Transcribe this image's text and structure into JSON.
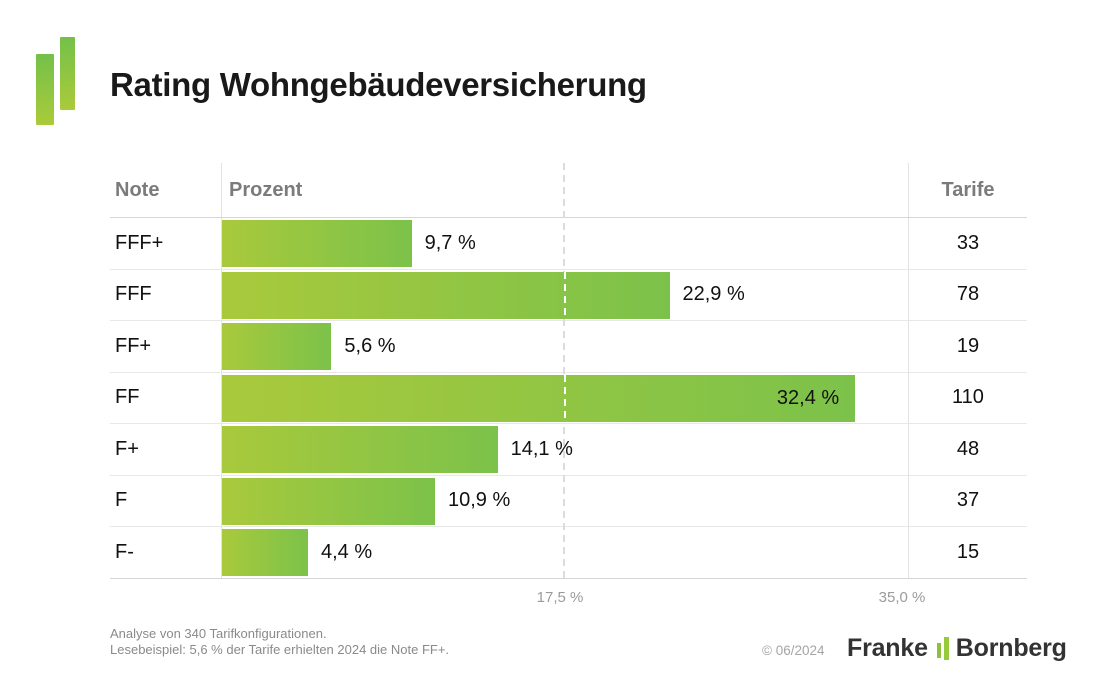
{
  "title": "Rating Wohngebäudeversicherung",
  "table": {
    "headers": {
      "note": "Note",
      "prozent": "Prozent",
      "tarife": "Tarife"
    }
  },
  "chart_data": {
    "type": "bar",
    "orientation": "horizontal",
    "title": "Rating Wohngebäudeversicherung",
    "categories": [
      "FFF+",
      "FFF",
      "FF+",
      "FF",
      "F+",
      "F",
      "F-"
    ],
    "values": [
      9.7,
      22.9,
      5.6,
      32.4,
      14.1,
      10.9,
      4.4
    ],
    "value_labels": [
      "9,7 %",
      "22,9 %",
      "5,6 %",
      "32,4 %",
      "14,1 %",
      "10,9 %",
      "4,4 %"
    ],
    "label_inside": [
      false,
      false,
      false,
      true,
      false,
      false,
      false
    ],
    "tarife_counts": [
      33,
      78,
      19,
      110,
      48,
      37,
      15
    ],
    "xlim": [
      0,
      35
    ],
    "x_ticks": [
      {
        "value": 17.5,
        "label": "17,5 %"
      },
      {
        "value": 35.0,
        "label": "35,0 %"
      }
    ],
    "gridline_at": 17.5,
    "grid_style": "dashed",
    "legend": "none",
    "bar_color_start": "#a9c93c",
    "bar_color_end": "#7cc24a"
  },
  "footer": {
    "line1": "Analyse von 340 Tarifkonfigurationen.",
    "line2": "Lesebeispiel: 5,6 % der Tarife erhielten 2024 die Note FF+.",
    "copyright": "© 06/2024",
    "brand_word1": "Franke",
    "brand_word2": "Bornberg"
  },
  "colors": {
    "brand_green": "#8fc03c",
    "title_text": "#191919",
    "header_text": "#7b7b7b",
    "muted_text": "#8a8a8a"
  }
}
